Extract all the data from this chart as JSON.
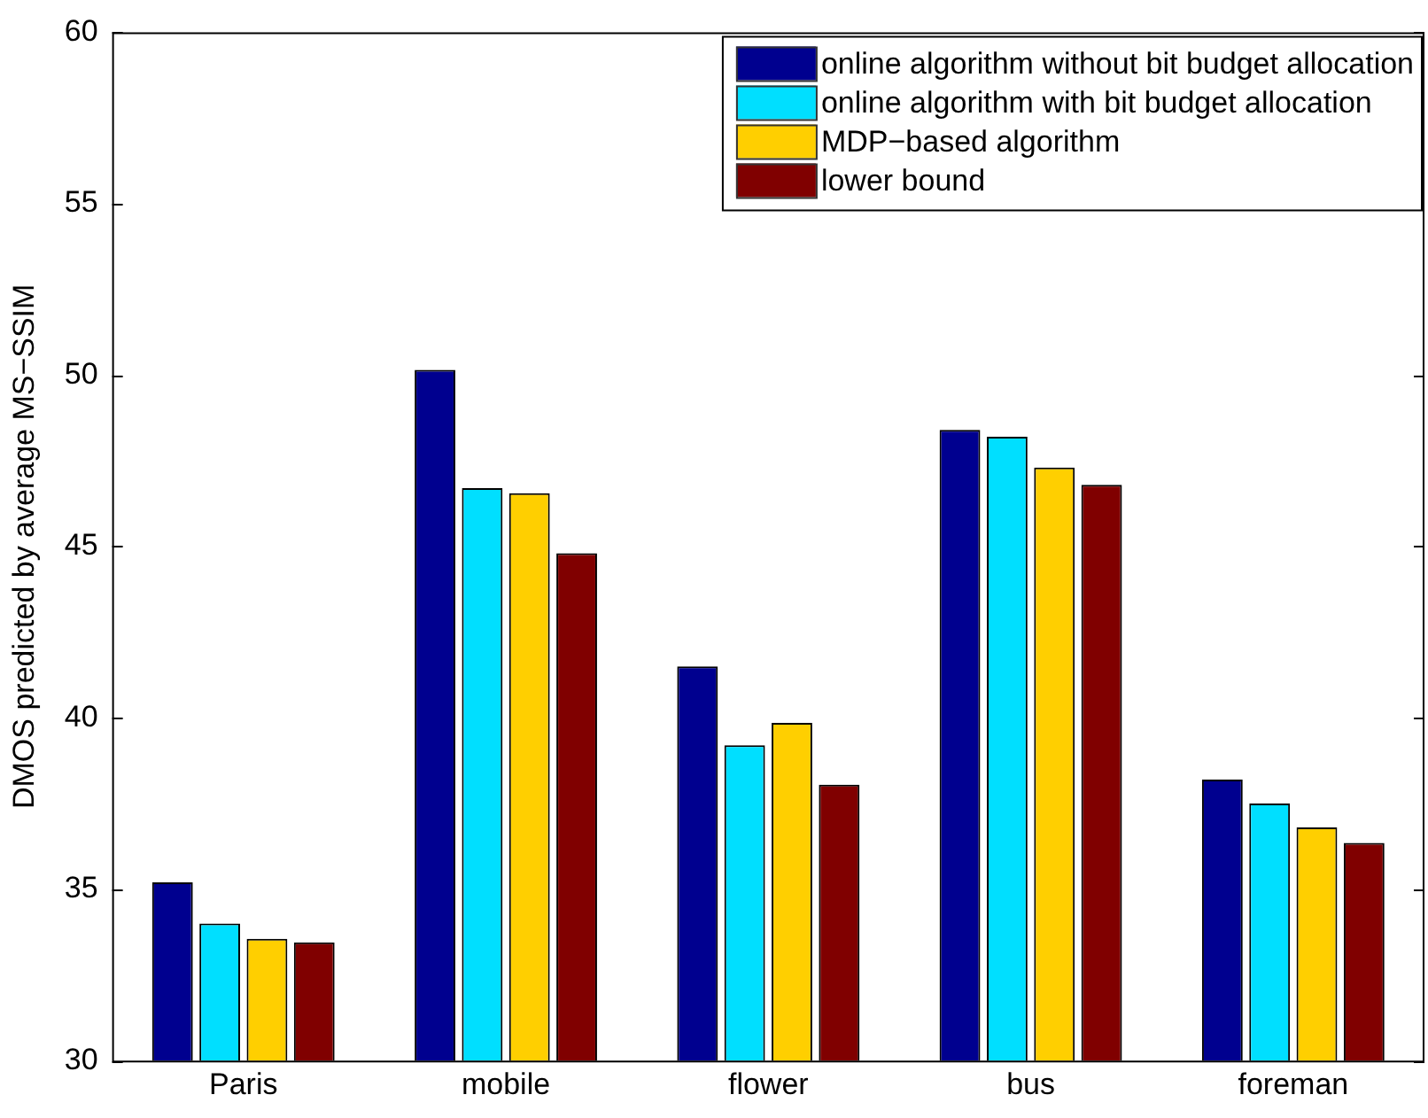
{
  "chart_data": {
    "type": "bar",
    "ylabel": "DMOS predicted by average MS−SSIM",
    "categories": [
      "Paris",
      "mobile",
      "flower",
      "bus",
      "foreman"
    ],
    "series": [
      {
        "name": "online algorithm without bit budget allocation",
        "color": "#00008f",
        "values": [
          35.2,
          50.15,
          41.5,
          48.4,
          38.2
        ]
      },
      {
        "name": "online algorithm with bit budget allocation",
        "color": "#00dfff",
        "values": [
          34.0,
          46.7,
          39.2,
          48.2,
          37.5
        ]
      },
      {
        "name": "MDP−based algorithm",
        "color": "#ffcf00",
        "values": [
          33.55,
          46.55,
          39.85,
          47.3,
          36.8
        ]
      },
      {
        "name": "lower bound",
        "color": "#800000",
        "values": [
          33.45,
          44.8,
          38.05,
          46.8,
          36.35
        ]
      }
    ],
    "ylim": [
      30,
      60
    ],
    "yticks": [
      30,
      35,
      40,
      45,
      50,
      55,
      60
    ],
    "grid": false,
    "legend": "top right"
  }
}
